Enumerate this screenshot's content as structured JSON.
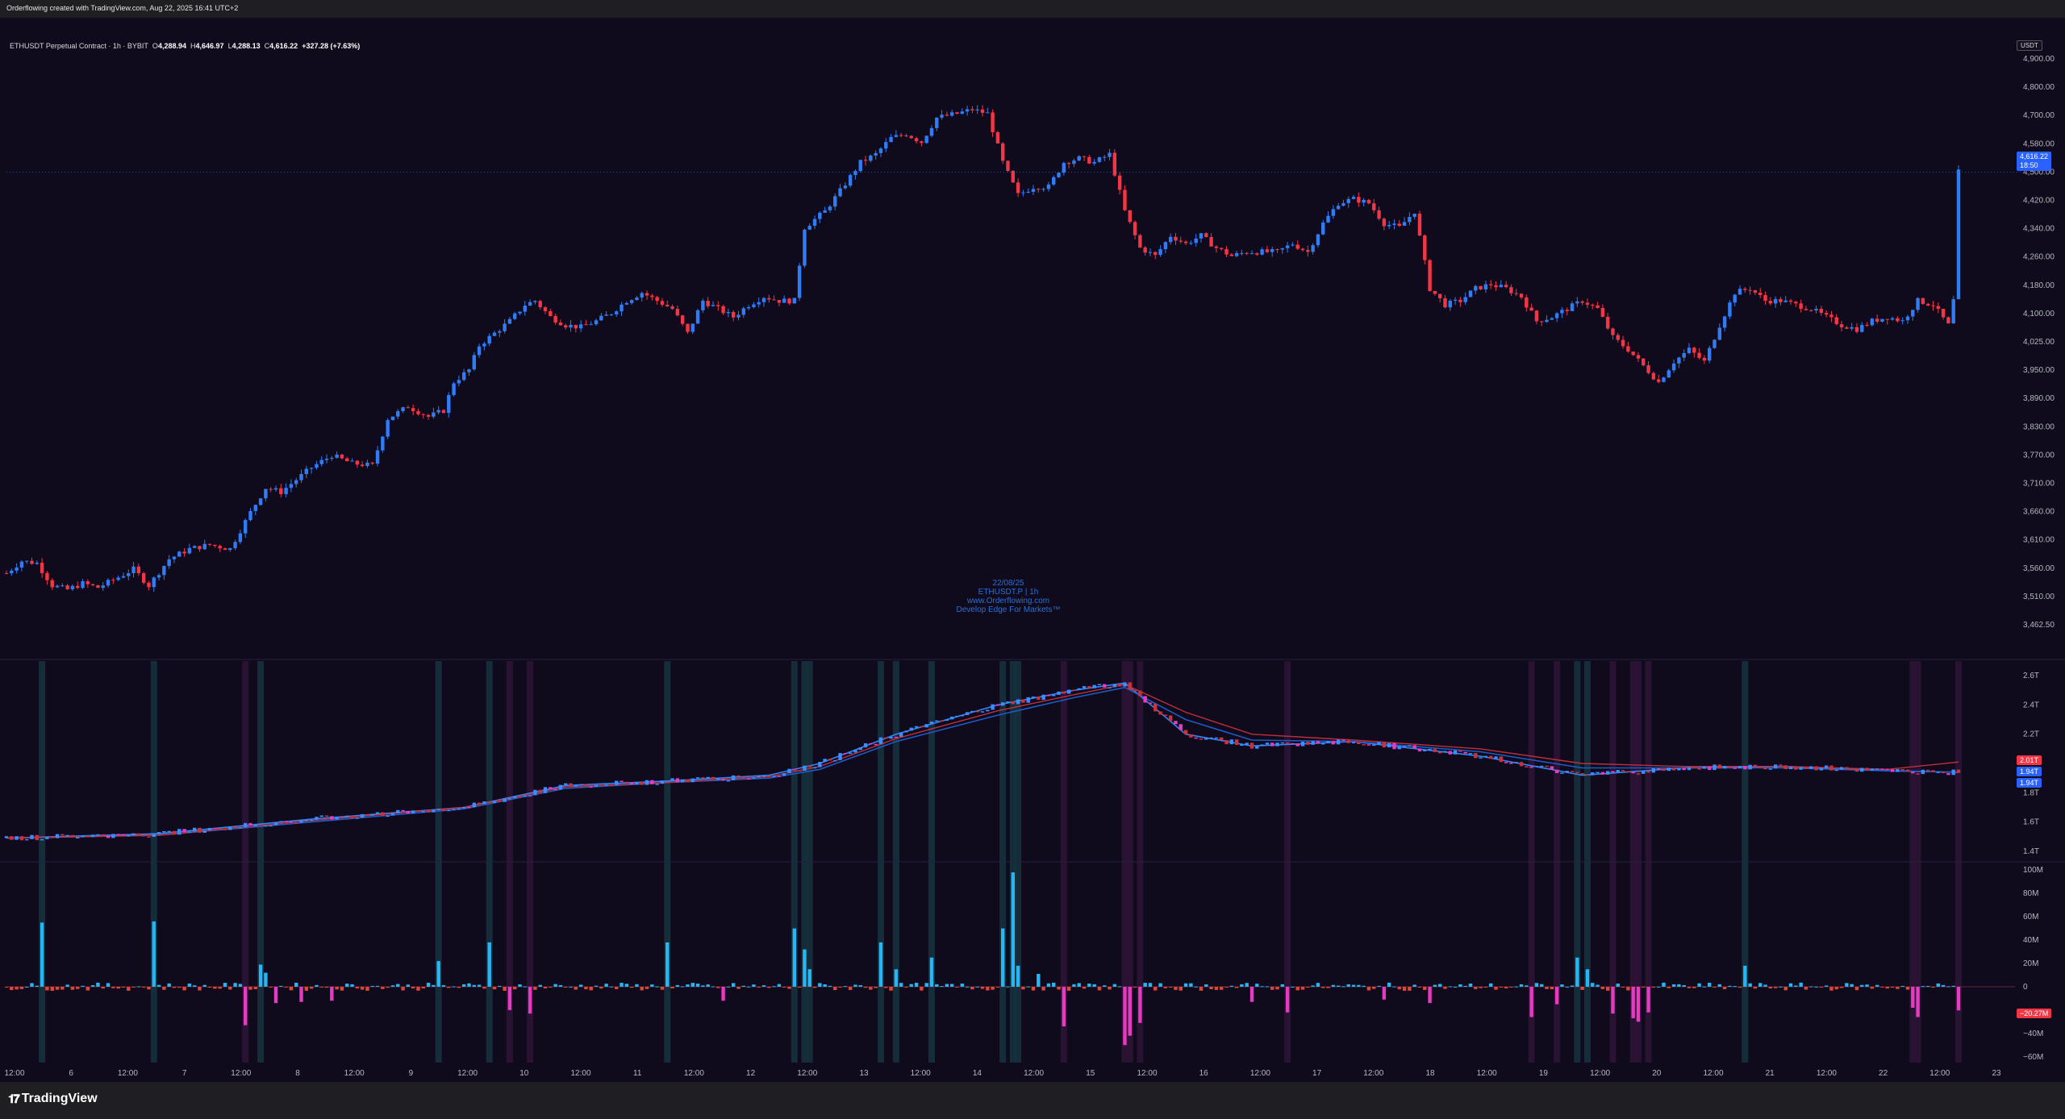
{
  "caption": "Orderflowing created with TradingView.com, Aug 22, 2025 16:41 UTC+2",
  "symbol": {
    "name": "ETHUSDT Perpetual Contract · 1h · BYBIT",
    "open_label": "O",
    "open": "4,288.94",
    "high_label": "H",
    "high": "4,646.97",
    "low_label": "L",
    "low": "4,288.13",
    "close_label": "C",
    "close": "4,616.22",
    "change": "+327.28 (+7.63%)"
  },
  "currency": "USDT",
  "watermark": [
    "22/08/25",
    "ETHUSDT.P | 1h",
    "www.Orderflowing.com",
    "Develop Edge For Markets™"
  ],
  "price_badge": {
    "value": "4,616.22",
    "timer": "18:50",
    "color": "#2962ff"
  },
  "cvd_badges": [
    {
      "value": "2.01T",
      "color": "#f23645"
    },
    {
      "value": "1.94T",
      "color": "#2962ff"
    },
    {
      "value": "1.94T",
      "color": "#2962ff"
    }
  ],
  "delta_badge": {
    "value": "−20.27M",
    "color": "#f23645"
  },
  "colors": {
    "up": "#2f7cf6",
    "down": "#f23645",
    "cvd_blue": "#3a8cff",
    "cvd_red": "#c8323c",
    "delta_pos": "#27b6f5",
    "delta_neg": "#e63bc1",
    "delta_small_neg": "#e0453a",
    "band_cyan": "#16333f",
    "band_magenta": "#2e1436",
    "background": "#0f0b1c"
  },
  "branding": "TradingView",
  "chart_data": [
    {
      "type": "candlestick",
      "title": "ETHUSDT Perpetual Contract · 1h · BYBIT",
      "ylabel": "USDT",
      "ylim": [
        3430,
        4960
      ],
      "y_ticks": [
        "4,900.00",
        "4,800.00",
        "4,700.00",
        "4,580.00",
        "4,500.00",
        "4,420.00",
        "4,340.00",
        "4,260.00",
        "4,180.00",
        "4,100.00",
        "4,025.00",
        "3,950.00",
        "3,890.00",
        "3,830.00",
        "3,770.00",
        "3,710.00",
        "3,660.00",
        "3,610.00",
        "3,560.00",
        "3,510.00",
        "3,462.50"
      ],
      "x_ticks": [
        "12:00",
        "6",
        "12:00",
        "7",
        "12:00",
        "8",
        "12:00",
        "9",
        "12:00",
        "10",
        "12:00",
        "11",
        "12:00",
        "12",
        "12:00",
        "13",
        "12:00",
        "14",
        "12:00",
        "15",
        "12:00",
        "16",
        "12:00",
        "17",
        "12:00",
        "18",
        "12:00",
        "19",
        "12:00",
        "20",
        "12:00",
        "21",
        "12:00",
        "22",
        "12:00",
        "23"
      ],
      "close_path": [
        [
          0,
          3630
        ],
        [
          3,
          3660
        ],
        [
          6,
          3655
        ],
        [
          9,
          3600
        ],
        [
          12,
          3590
        ],
        [
          15,
          3605
        ],
        [
          18,
          3595
        ],
        [
          22,
          3620
        ],
        [
          25,
          3640
        ],
        [
          28,
          3600
        ],
        [
          32,
          3665
        ],
        [
          36,
          3690
        ],
        [
          40,
          3700
        ],
        [
          44,
          3690
        ],
        [
          48,
          3780
        ],
        [
          51,
          3840
        ],
        [
          54,
          3830
        ],
        [
          57,
          3860
        ],
        [
          60,
          3890
        ],
        [
          64,
          3920
        ],
        [
          68,
          3900
        ],
        [
          72,
          3895
        ],
        [
          75,
          4010
        ],
        [
          79,
          4040
        ],
        [
          83,
          4015
        ],
        [
          86,
          4030
        ],
        [
          88,
          4100
        ],
        [
          91,
          4130
        ],
        [
          93,
          4190
        ],
        [
          96,
          4220
        ],
        [
          99,
          4250
        ],
        [
          102,
          4290
        ],
        [
          104,
          4300
        ],
        [
          107,
          4260
        ],
        [
          110,
          4240
        ],
        [
          113,
          4235
        ],
        [
          116,
          4250
        ],
        [
          119,
          4270
        ],
        [
          122,
          4300
        ],
        [
          125,
          4320
        ],
        [
          128,
          4300
        ],
        [
          131,
          4280
        ],
        [
          134,
          4220
        ],
        [
          137,
          4300
        ],
        [
          140,
          4280
        ],
        [
          143,
          4260
        ],
        [
          146,
          4290
        ],
        [
          149,
          4310
        ],
        [
          152,
          4300
        ],
        [
          155,
          4300
        ],
        [
          157,
          4480
        ],
        [
          161,
          4520
        ],
        [
          164,
          4570
        ],
        [
          168,
          4640
        ],
        [
          171,
          4660
        ],
        [
          174,
          4700
        ],
        [
          177,
          4710
        ],
        [
          180,
          4690
        ],
        [
          183,
          4750
        ],
        [
          187,
          4760
        ],
        [
          190,
          4770
        ],
        [
          193,
          4760
        ],
        [
          196,
          4640
        ],
        [
          199,
          4560
        ],
        [
          202,
          4580
        ],
        [
          205,
          4580
        ],
        [
          208,
          4640
        ],
        [
          211,
          4650
        ],
        [
          214,
          4640
        ],
        [
          217,
          4660
        ],
        [
          220,
          4520
        ],
        [
          223,
          4430
        ],
        [
          226,
          4410
        ],
        [
          229,
          4460
        ],
        [
          232,
          4440
        ],
        [
          235,
          4460
        ],
        [
          238,
          4430
        ],
        [
          241,
          4410
        ],
        [
          244,
          4420
        ],
        [
          247,
          4420
        ],
        [
          250,
          4420
        ],
        [
          253,
          4440
        ],
        [
          256,
          4420
        ],
        [
          259,
          4490
        ],
        [
          262,
          4540
        ],
        [
          265,
          4550
        ],
        [
          268,
          4540
        ],
        [
          271,
          4490
        ],
        [
          274,
          4480
        ],
        [
          277,
          4520
        ],
        [
          280,
          4330
        ],
        [
          283,
          4290
        ],
        [
          286,
          4300
        ],
        [
          289,
          4330
        ],
        [
          292,
          4340
        ],
        [
          295,
          4330
        ],
        [
          298,
          4310
        ],
        [
          301,
          4250
        ],
        [
          304,
          4260
        ],
        [
          307,
          4280
        ],
        [
          310,
          4300
        ],
        [
          313,
          4280
        ],
        [
          316,
          4210
        ],
        [
          319,
          4180
        ],
        [
          322,
          4140
        ],
        [
          325,
          4100
        ],
        [
          328,
          4150
        ],
        [
          331,
          4180
        ],
        [
          334,
          4150
        ],
        [
          337,
          4240
        ],
        [
          340,
          4320
        ],
        [
          343,
          4330
        ],
        [
          346,
          4300
        ],
        [
          349,
          4300
        ],
        [
          352,
          4290
        ],
        [
          355,
          4280
        ],
        [
          358,
          4260
        ],
        [
          361,
          4240
        ],
        [
          364,
          4230
        ],
        [
          367,
          4250
        ],
        [
          370,
          4260
        ],
        [
          373,
          4250
        ],
        [
          376,
          4300
        ],
        [
          379,
          4290
        ],
        [
          382,
          4240
        ],
        [
          383,
          4300
        ],
        [
          384,
          4616
        ]
      ],
      "last_price": 4616.22
    },
    {
      "type": "line",
      "title": "",
      "ylim": [
        1.35,
        2.7
      ],
      "y_ticks": [
        "2.6T",
        "2.4T",
        "2.2T",
        "1.8T",
        "1.6T",
        "1.4T"
      ],
      "series": [
        {
          "values": [
            [
              0,
              1.49
            ],
            [
              30,
              1.52
            ],
            [
              60,
              1.62
            ],
            [
              90,
              1.7
            ],
            [
              110,
              1.85
            ],
            [
              130,
              1.88
            ],
            [
              150,
              1.92
            ],
            [
              160,
              2.0
            ],
            [
              175,
              2.2
            ],
            [
              195,
              2.4
            ],
            [
              210,
              2.5
            ],
            [
              220,
              2.55
            ],
            [
              232,
              2.2
            ],
            [
              245,
              2.12
            ],
            [
              265,
              2.15
            ],
            [
              290,
              2.05
            ],
            [
              310,
              1.92
            ],
            [
              330,
              1.97
            ],
            [
              350,
              1.98
            ],
            [
              370,
              1.95
            ],
            [
              384,
              1.94
            ]
          ]
        },
        {
          "values": [
            [
              0,
              1.49
            ],
            [
              30,
              1.51
            ],
            [
              60,
              1.6
            ],
            [
              90,
              1.69
            ],
            [
              110,
              1.83
            ],
            [
              130,
              1.87
            ],
            [
              150,
              1.9
            ],
            [
              160,
              1.96
            ],
            [
              175,
              2.15
            ],
            [
              195,
              2.33
            ],
            [
              210,
              2.45
            ],
            [
              220,
              2.52
            ],
            [
              232,
              2.3
            ],
            [
              245,
              2.16
            ],
            [
              265,
              2.15
            ],
            [
              290,
              2.08
            ],
            [
              310,
              1.97
            ],
            [
              330,
              1.97
            ],
            [
              350,
              1.97
            ],
            [
              370,
              1.95
            ],
            [
              384,
              1.94
            ]
          ]
        },
        {
          "values": [
            [
              0,
              1.49
            ],
            [
              30,
              1.51
            ],
            [
              60,
              1.61
            ],
            [
              90,
              1.7
            ],
            [
              110,
              1.84
            ],
            [
              130,
              1.87
            ],
            [
              150,
              1.91
            ],
            [
              160,
              1.98
            ],
            [
              175,
              2.17
            ],
            [
              195,
              2.36
            ],
            [
              210,
              2.47
            ],
            [
              220,
              2.54
            ],
            [
              232,
              2.35
            ],
            [
              245,
              2.2
            ],
            [
              265,
              2.16
            ],
            [
              290,
              2.1
            ],
            [
              310,
              2.0
            ],
            [
              330,
              1.98
            ],
            [
              350,
              1.98
            ],
            [
              370,
              1.96
            ],
            [
              384,
              2.01
            ]
          ]
        }
      ],
      "last_values": [
        "2.01T",
        "1.94T",
        "1.94T"
      ]
    },
    {
      "type": "bar",
      "title": "",
      "ylim": [
        -65,
        105
      ],
      "y_ticks": [
        "100M",
        "80M",
        "60M",
        "40M",
        "20M",
        "0",
        "−40M",
        "−60M"
      ],
      "values": [
        [
          7,
          55
        ],
        [
          29,
          56
        ],
        [
          47,
          -33
        ],
        [
          50,
          19
        ],
        [
          51,
          12
        ],
        [
          53,
          -14
        ],
        [
          58,
          -13
        ],
        [
          64,
          -12
        ],
        [
          85,
          22
        ],
        [
          95,
          38
        ],
        [
          99,
          -20
        ],
        [
          103,
          -23
        ],
        [
          130,
          38
        ],
        [
          141,
          -12
        ],
        [
          155,
          50
        ],
        [
          157,
          32
        ],
        [
          158,
          15
        ],
        [
          172,
          38
        ],
        [
          175,
          15
        ],
        [
          182,
          25
        ],
        [
          196,
          50
        ],
        [
          198,
          98
        ],
        [
          199,
          18
        ],
        [
          203,
          11
        ],
        [
          208,
          -34
        ],
        [
          220,
          -50
        ],
        [
          221,
          -42
        ],
        [
          223,
          -31
        ],
        [
          245,
          -13
        ],
        [
          252,
          -22
        ],
        [
          271,
          -11
        ],
        [
          280,
          -14
        ],
        [
          300,
          -26
        ],
        [
          305,
          -15
        ],
        [
          309,
          25
        ],
        [
          311,
          15
        ],
        [
          316,
          -23
        ],
        [
          320,
          -27
        ],
        [
          321,
          -30
        ],
        [
          323,
          -22
        ],
        [
          342,
          18
        ],
        [
          375,
          -18
        ],
        [
          376,
          -26
        ],
        [
          384,
          -20.27
        ]
      ],
      "last_value": "−20.27M"
    }
  ]
}
